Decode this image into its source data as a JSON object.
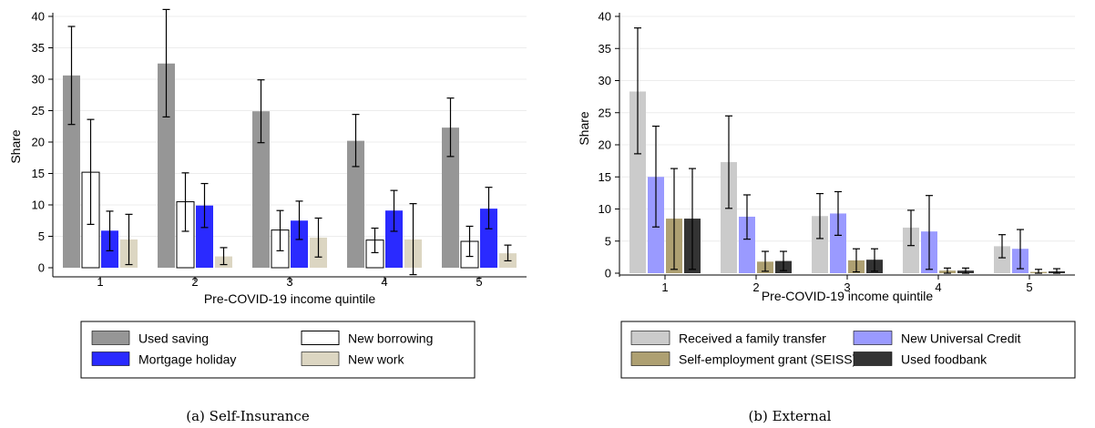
{
  "chart_data": [
    {
      "type": "bar",
      "caption": "(a) Self-Insurance",
      "xlabel": "Pre-COVID-19 income quintile",
      "ylabel": "Share",
      "ylim": [
        0,
        40
      ],
      "yticks": [
        0,
        5,
        10,
        15,
        20,
        25,
        30,
        35,
        40
      ],
      "categories": [
        "1",
        "2",
        "3",
        "4",
        "5"
      ],
      "grid": true,
      "legend_position": "bottom",
      "series": [
        {
          "name": "Used saving",
          "color": "#969696",
          "values": [
            30.6,
            32.5,
            24.9,
            20.2,
            22.3
          ],
          "ci_low": [
            22.8,
            24.0,
            19.9,
            16.1,
            17.7
          ],
          "ci_high": [
            38.4,
            41.1,
            29.9,
            24.4,
            27.0
          ]
        },
        {
          "name": "New borrowing",
          "color": "#ffffff",
          "values": [
            15.2,
            10.5,
            6.0,
            4.4,
            4.2
          ],
          "ci_low": [
            6.9,
            5.8,
            2.7,
            2.4,
            1.8
          ],
          "ci_high": [
            23.6,
            15.1,
            9.1,
            6.3,
            6.6
          ]
        },
        {
          "name": "Mortgage holiday",
          "color": "#2a2aff",
          "values": [
            5.9,
            9.9,
            7.5,
            9.1,
            9.4
          ],
          "ci_low": [
            2.7,
            6.4,
            4.5,
            5.8,
            6.2
          ],
          "ci_high": [
            9.0,
            13.4,
            10.6,
            12.3,
            12.8
          ]
        },
        {
          "name": "New work",
          "color": "#dcd6c2",
          "values": [
            4.5,
            1.8,
            4.8,
            4.5,
            2.3
          ],
          "ci_low": [
            0.5,
            0.5,
            1.7,
            -1.1,
            1.1
          ],
          "ci_high": [
            8.5,
            3.2,
            7.9,
            10.2,
            3.6
          ]
        }
      ]
    },
    {
      "type": "bar",
      "caption": "(b) External",
      "xlabel": "Pre-COVID-19 income quintile",
      "ylabel": "Share",
      "ylim": [
        0,
        40
      ],
      "yticks": [
        0,
        5,
        10,
        15,
        20,
        25,
        30,
        35,
        40
      ],
      "categories": [
        "1",
        "2",
        "3",
        "4",
        "5"
      ],
      "grid": true,
      "legend_position": "bottom",
      "series": [
        {
          "name": "Received a family transfer",
          "color": "#cbcbcb",
          "values": [
            28.3,
            17.3,
            8.9,
            7.1,
            4.2
          ],
          "ci_low": [
            18.6,
            10.1,
            5.4,
            4.3,
            2.4
          ],
          "ci_high": [
            38.2,
            24.5,
            12.4,
            9.8,
            6.0
          ]
        },
        {
          "name": "New Universal Credit",
          "color": "#9a9aff",
          "values": [
            15.0,
            8.8,
            9.3,
            6.5,
            3.8
          ],
          "ci_low": [
            7.2,
            5.3,
            5.9,
            0.6,
            0.7
          ],
          "ci_high": [
            22.9,
            12.2,
            12.7,
            12.1,
            6.8
          ]
        },
        {
          "name": "Self-employment grant (SEISS)",
          "color": "#aea072",
          "values": [
            8.5,
            1.8,
            2.0,
            0.4,
            0.2
          ],
          "ci_low": [
            0.6,
            0.3,
            0.2,
            0.0,
            0.0
          ],
          "ci_high": [
            16.3,
            3.4,
            3.8,
            0.8,
            0.6
          ]
        },
        {
          "name": "Used foodbank",
          "color": "#333333",
          "values": [
            8.5,
            1.9,
            2.1,
            0.4,
            0.3
          ],
          "ci_low": [
            0.6,
            0.4,
            0.3,
            0.0,
            0.0
          ],
          "ci_high": [
            16.3,
            3.4,
            3.8,
            0.8,
            0.7
          ]
        }
      ]
    }
  ]
}
